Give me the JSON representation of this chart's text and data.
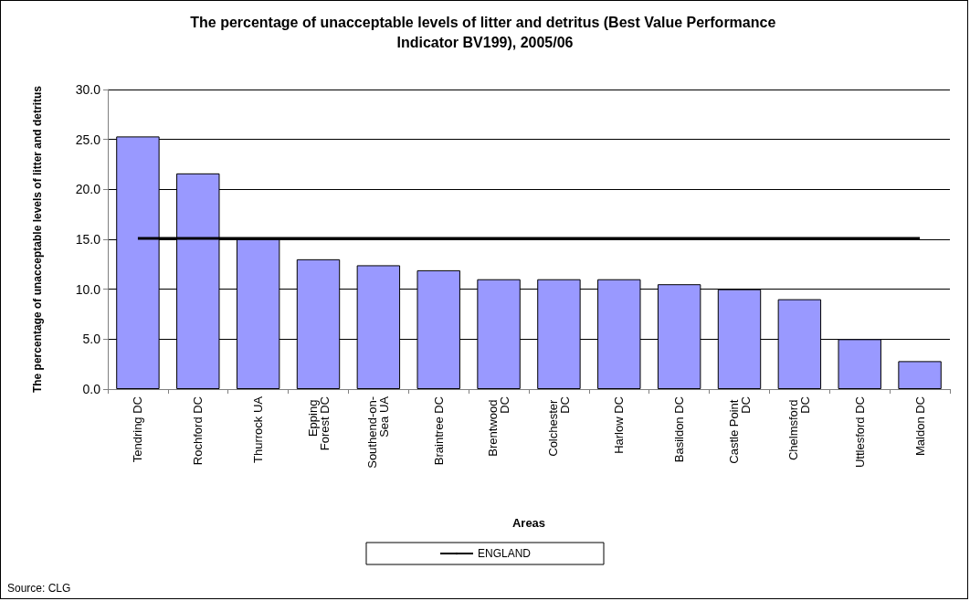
{
  "chart_data": {
    "type": "bar",
    "title": "The percentage of unacceptable levels of litter and detritus (Best Value Performance Indicator BV199), 2005/06",
    "xlabel": "Areas",
    "ylabel": "The percentage of unacceptable levels of litter and detritus",
    "categories": [
      "Tendring DC",
      "Rochford DC",
      "Thurrock UA",
      "Epping Forest DC",
      "Southend-on-Sea UA",
      "Braintree DC",
      "Brentwood DC",
      "Colchester DC",
      "Harlow DC",
      "Basildon DC",
      "Castle Point DC",
      "Chelmsford DC",
      "Uttlesford DC",
      "Maldon DC"
    ],
    "series": [
      {
        "color": "#9999ff",
        "values": [
          25.3,
          21.6,
          15.0,
          13.0,
          12.4,
          11.9,
          11.0,
          11.0,
          11.0,
          10.5,
          10.0,
          9.0,
          5.0,
          2.8
        ]
      },
      {
        "type": "line",
        "name": "ENGLAND",
        "color": "#000000",
        "values": [
          15.1,
          15.1,
          15.1,
          15.1,
          15.1,
          15.1,
          15.1,
          15.1,
          15.1,
          15.1,
          15.1,
          15.1,
          15.1,
          15.1
        ]
      }
    ],
    "ylim": [
      0,
      30
    ],
    "yticks": [
      {
        "value": 0,
        "label": "0.0"
      },
      {
        "value": 5,
        "label": "5.0"
      },
      {
        "value": 10,
        "label": "10.0"
      },
      {
        "value": 15,
        "label": "15.0"
      },
      {
        "value": 20,
        "label": "20.0"
      },
      {
        "value": 25,
        "label": "25.0"
      },
      {
        "value": 30,
        "label": "30.0"
      }
    ],
    "grid": "y",
    "legend": "bottom",
    "marker": "none",
    "line_style": "solid",
    "annotations": [
      "Source: CLG"
    ]
  }
}
